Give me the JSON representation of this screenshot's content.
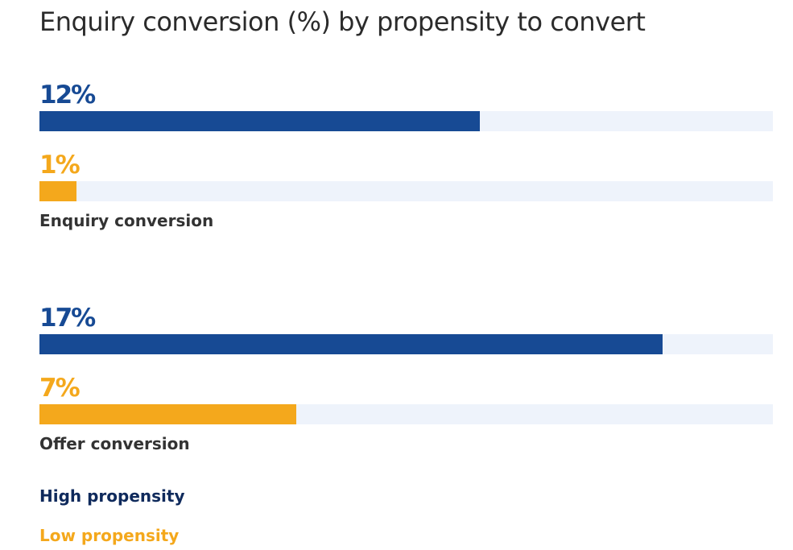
{
  "colors": {
    "high": "#174a94",
    "low": "#f4a81c",
    "track": "#eef3fb",
    "text": "#333333"
  },
  "chart_data": {
    "type": "bar",
    "orientation": "horizontal",
    "title": "Enquiry conversion (%) by propensity to convert",
    "categories": [
      "Enquiry conversion",
      "Offer conversion"
    ],
    "series": [
      {
        "name": "High propensity",
        "values": [
          12,
          17
        ],
        "labels": [
          "12%",
          "17%"
        ]
      },
      {
        "name": "Low propensity",
        "values": [
          1,
          7
        ],
        "labels": [
          "1%",
          "7%"
        ]
      }
    ],
    "xlim": [
      0,
      20
    ],
    "grid": false,
    "legend": "bottom-left"
  }
}
